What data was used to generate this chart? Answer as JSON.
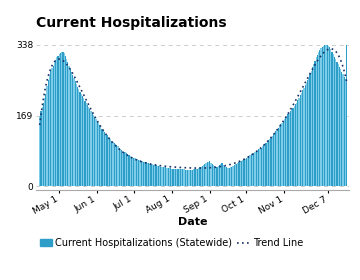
{
  "title": "Current Hospitalizations",
  "xlabel": "Date",
  "yticks": [
    0,
    169,
    338
  ],
  "ylim": [
    -10,
    365
  ],
  "bar_color_light": "#7dcde8",
  "bar_color_dark": "#2e9dc8",
  "bar_edge_color": "#2e9dc8",
  "trend_color": "#1a3068",
  "grid_color": "#cccccc",
  "background_color": "#ffffff",
  "title_fontsize": 10,
  "tick_fontsize": 6.5,
  "xlabel_fontsize": 8,
  "legend_fontsize": 7,
  "xtick_labels": [
    "May 1",
    "Jun 1",
    "Jul 1",
    "Aug 1",
    "Sep 1",
    "Oct 1",
    "Nov 1",
    "Dec 7"
  ],
  "n_days": 252,
  "hospitalization_data": [
    169,
    180,
    190,
    200,
    210,
    220,
    240,
    255,
    265,
    275,
    282,
    288,
    295,
    302,
    308,
    312,
    316,
    318,
    320,
    322,
    318,
    312,
    305,
    296,
    288,
    280,
    273,
    266,
    258,
    251,
    244,
    238,
    232,
    226,
    220,
    215,
    210,
    205,
    200,
    195,
    190,
    185,
    180,
    175,
    170,
    165,
    160,
    155,
    150,
    146,
    142,
    138,
    134,
    130,
    126,
    122,
    118,
    115,
    112,
    109,
    106,
    103,
    100,
    98,
    95,
    92,
    90,
    87,
    85,
    83,
    81,
    79,
    77,
    75,
    73,
    71,
    70,
    68,
    67,
    65,
    64,
    63,
    62,
    61,
    60,
    59,
    58,
    57,
    56,
    55,
    54,
    53,
    52,
    51,
    50,
    50,
    49,
    48,
    48,
    47,
    46,
    46,
    45,
    45,
    44,
    44,
    43,
    43,
    42,
    42,
    42,
    41,
    41,
    41,
    40,
    40,
    40,
    40,
    40,
    39,
    39,
    39,
    39,
    39,
    39,
    39,
    40,
    40,
    41,
    42,
    43,
    45,
    47,
    49,
    51,
    53,
    55,
    57,
    59,
    61,
    55,
    52,
    50,
    48,
    47,
    47,
    48,
    50,
    53,
    55,
    50,
    48,
    46,
    45,
    44,
    44,
    45,
    47,
    49,
    50,
    52,
    54,
    56,
    58,
    60,
    60,
    62,
    64,
    66,
    68,
    70,
    72,
    74,
    76,
    78,
    80,
    82,
    84,
    86,
    88,
    90,
    92,
    95,
    98,
    100,
    103,
    106,
    110,
    113,
    116,
    120,
    124,
    128,
    132,
    136,
    140,
    144,
    148,
    152,
    156,
    160,
    164,
    168,
    172,
    176,
    180,
    184,
    188,
    192,
    196,
    200,
    206,
    212,
    218,
    224,
    230,
    236,
    242,
    248,
    254,
    260,
    268,
    276,
    284,
    292,
    300,
    308,
    314,
    320,
    326,
    330,
    333,
    335,
    337,
    338,
    338,
    336,
    333,
    328,
    322,
    316,
    310,
    304,
    298,
    292,
    286,
    280,
    274,
    268,
    262,
    256,
    338
  ]
}
